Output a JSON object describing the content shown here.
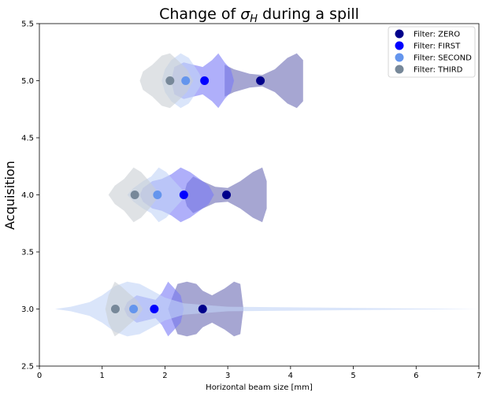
{
  "chart_data": {
    "type": "violin",
    "title_prefix": "Change of ",
    "title_symbol": "σ",
    "title_subscript": "H",
    "title_suffix": " during a spill",
    "xlabel": "Horizontal beam size [mm]",
    "ylabel": "Acquisition",
    "xlim": [
      0,
      7
    ],
    "ylim": [
      2.5,
      5.5
    ],
    "xticks": [
      "0",
      "1",
      "2",
      "3",
      "4",
      "5",
      "6",
      "7"
    ],
    "yticks": [
      "2.5",
      "3.0",
      "3.5",
      "4.0",
      "4.5",
      "5.0",
      "5.5"
    ],
    "grid": false,
    "legend_position": "upper right",
    "series": [
      {
        "name": "Filter: ZERO",
        "color": "#00008b",
        "violin_color": "#6a6ab4",
        "points": [
          {
            "acquisition": 3.0,
            "median": 2.6,
            "shape": [
              [
                2.05,
                0.0
              ],
              [
                2.1,
                0.08
              ],
              [
                2.2,
                0.22
              ],
              [
                2.35,
                0.24
              ],
              [
                2.5,
                0.22
              ],
              [
                2.6,
                0.16
              ],
              [
                2.75,
                0.12
              ],
              [
                2.95,
                0.18
              ],
              [
                3.1,
                0.24
              ],
              [
                3.2,
                0.22
              ],
              [
                3.25,
                0.0
              ]
            ]
          },
          {
            "acquisition": 4.0,
            "median": 2.98,
            "shape": [
              [
                2.3,
                0.0
              ],
              [
                2.35,
                0.1
              ],
              [
                2.45,
                0.16
              ],
              [
                2.6,
                0.12
              ],
              [
                2.8,
                0.07
              ],
              [
                3.0,
                0.06
              ],
              [
                3.2,
                0.12
              ],
              [
                3.4,
                0.2
              ],
              [
                3.55,
                0.24
              ],
              [
                3.62,
                0.12
              ],
              [
                3.62,
                0.0
              ]
            ]
          },
          {
            "acquisition": 5.0,
            "median": 3.52,
            "shape": [
              [
                2.95,
                0.0
              ],
              [
                2.95,
                0.14
              ],
              [
                3.1,
                0.1
              ],
              [
                3.35,
                0.06
              ],
              [
                3.55,
                0.05
              ],
              [
                3.75,
                0.1
              ],
              [
                3.95,
                0.2
              ],
              [
                4.1,
                0.24
              ],
              [
                4.2,
                0.18
              ],
              [
                4.2,
                0.0
              ]
            ]
          }
        ]
      },
      {
        "name": "Filter: FIRST",
        "color": "#0000ff",
        "violin_color": "#7a7af7",
        "points": [
          {
            "acquisition": 3.0,
            "median": 1.83,
            "shape": [
              [
                1.35,
                0.0
              ],
              [
                1.4,
                0.06
              ],
              [
                1.55,
                0.12
              ],
              [
                1.7,
                0.1
              ],
              [
                1.85,
                0.08
              ],
              [
                1.95,
                0.14
              ],
              [
                2.05,
                0.24
              ],
              [
                2.15,
                0.18
              ],
              [
                2.25,
                0.12
              ],
              [
                2.3,
                0.0
              ]
            ]
          },
          {
            "acquisition": 4.0,
            "median": 2.3,
            "shape": [
              [
                1.6,
                0.0
              ],
              [
                1.65,
                0.06
              ],
              [
                1.8,
                0.12
              ],
              [
                1.95,
                0.14
              ],
              [
                2.1,
                0.18
              ],
              [
                2.25,
                0.24
              ],
              [
                2.4,
                0.2
              ],
              [
                2.55,
                0.14
              ],
              [
                2.7,
                0.08
              ],
              [
                2.78,
                0.0
              ]
            ]
          },
          {
            "acquisition": 5.0,
            "median": 2.63,
            "shape": [
              [
                2.1,
                0.0
              ],
              [
                2.15,
                0.12
              ],
              [
                2.3,
                0.16
              ],
              [
                2.45,
                0.14
              ],
              [
                2.6,
                0.12
              ],
              [
                2.75,
                0.18
              ],
              [
                2.85,
                0.24
              ],
              [
                2.95,
                0.16
              ],
              [
                3.05,
                0.1
              ],
              [
                3.1,
                0.0
              ]
            ]
          }
        ]
      },
      {
        "name": "Filter: SECOND",
        "color": "#6495ed",
        "violin_color": "#c2d3f6",
        "points": [
          {
            "acquisition": 3.0,
            "median": 1.5,
            "shape": [
              [
                0.25,
                0.0
              ],
              [
                0.5,
                0.02
              ],
              [
                0.8,
                0.06
              ],
              [
                1.0,
                0.12
              ],
              [
                1.2,
                0.2
              ],
              [
                1.4,
                0.24
              ],
              [
                1.6,
                0.22
              ],
              [
                1.8,
                0.16
              ],
              [
                2.0,
                0.1
              ],
              [
                2.3,
                0.05
              ],
              [
                3.0,
                0.02
              ],
              [
                4.5,
                0.012
              ],
              [
                7.0,
                0.0
              ]
            ]
          },
          {
            "acquisition": 4.0,
            "median": 1.88,
            "shape": [
              [
                1.4,
                0.0
              ],
              [
                1.5,
                0.06
              ],
              [
                1.65,
                0.12
              ],
              [
                1.78,
                0.16
              ],
              [
                1.9,
                0.24
              ],
              [
                2.02,
                0.2
              ],
              [
                2.15,
                0.12
              ],
              [
                2.25,
                0.06
              ],
              [
                2.35,
                0.0
              ]
            ]
          },
          {
            "acquisition": 5.0,
            "median": 2.33,
            "shape": [
              [
                1.95,
                0.0
              ],
              [
                2.0,
                0.1
              ],
              [
                2.1,
                0.18
              ],
              [
                2.25,
                0.24
              ],
              [
                2.38,
                0.2
              ],
              [
                2.48,
                0.12
              ],
              [
                2.55,
                0.06
              ],
              [
                2.6,
                0.0
              ]
            ]
          }
        ]
      },
      {
        "name": "Filter: THIRD",
        "color": "#778899",
        "violin_color": "#c9ced3",
        "points": [
          {
            "acquisition": 3.0,
            "median": 1.21,
            "shape": [
              [
                1.05,
                0.0
              ],
              [
                1.1,
                0.12
              ],
              [
                1.2,
                0.24
              ],
              [
                1.3,
                0.2
              ],
              [
                1.42,
                0.14
              ],
              [
                1.55,
                0.08
              ],
              [
                1.65,
                0.0
              ]
            ]
          },
          {
            "acquisition": 4.0,
            "median": 1.52,
            "shape": [
              [
                1.1,
                0.0
              ],
              [
                1.2,
                0.08
              ],
              [
                1.35,
                0.14
              ],
              [
                1.5,
                0.24
              ],
              [
                1.62,
                0.2
              ],
              [
                1.75,
                0.12
              ],
              [
                1.85,
                0.05
              ],
              [
                1.92,
                0.0
              ]
            ]
          },
          {
            "acquisition": 5.0,
            "median": 2.08,
            "shape": [
              [
                1.6,
                0.0
              ],
              [
                1.65,
                0.08
              ],
              [
                1.8,
                0.14
              ],
              [
                1.95,
                0.22
              ],
              [
                2.08,
                0.24
              ],
              [
                2.2,
                0.18
              ],
              [
                2.35,
                0.1
              ],
              [
                2.45,
                0.0
              ]
            ]
          }
        ]
      }
    ]
  }
}
